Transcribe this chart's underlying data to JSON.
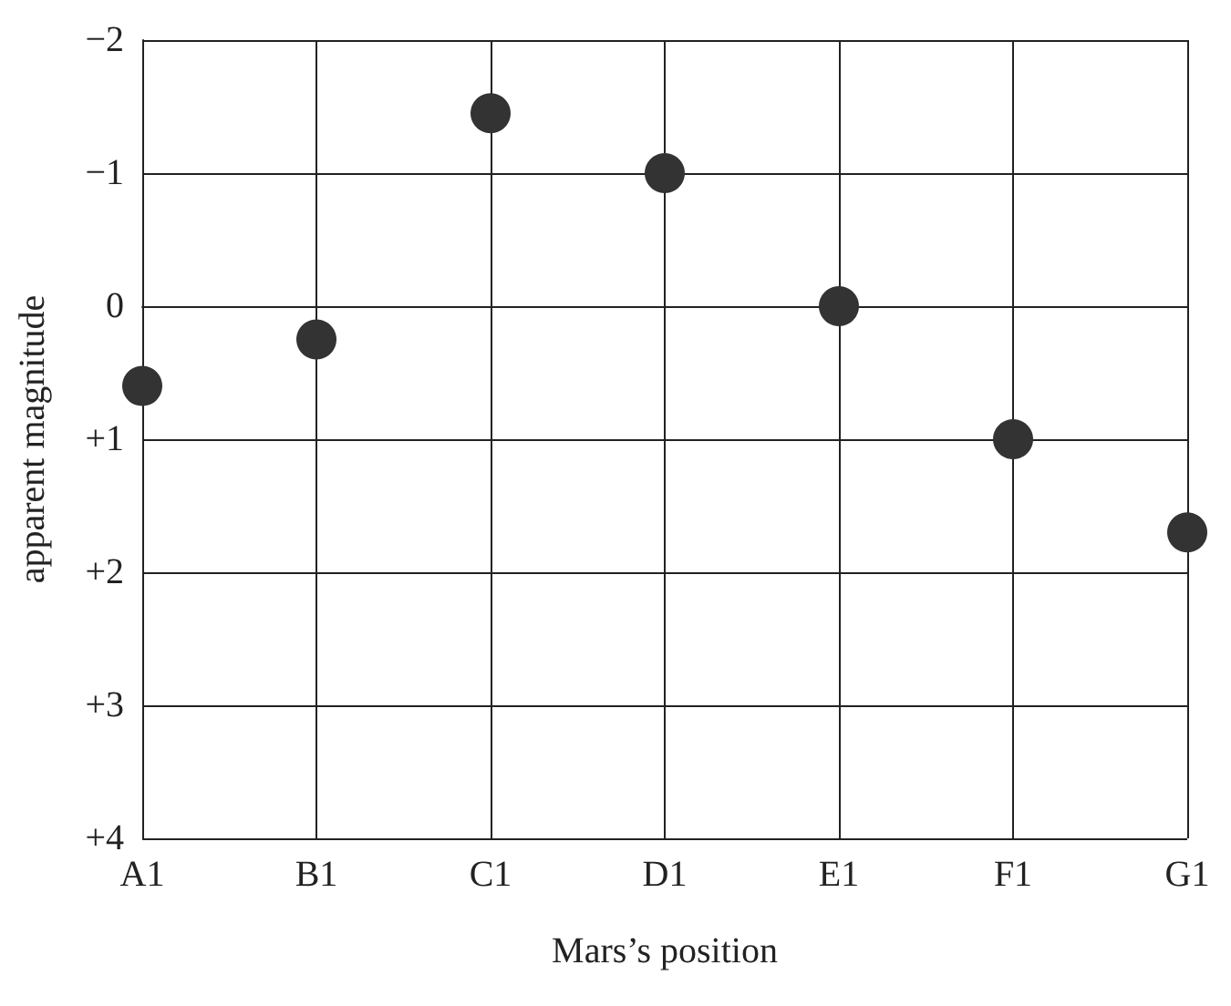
{
  "chart_data": {
    "type": "scatter",
    "xlabel": "Mars’s position",
    "ylabel": "apparent magnitude",
    "categories": [
      "A1",
      "B1",
      "C1",
      "D1",
      "E1",
      "F1",
      "G1"
    ],
    "series": [
      {
        "color": "#333333",
        "values": [
          0.6,
          0.25,
          -1.45,
          -1.0,
          0.0,
          1.0,
          1.7
        ]
      }
    ],
    "ylim": [
      4,
      -2
    ],
    "yticks": [
      {
        "value": -2,
        "label": "−2"
      },
      {
        "value": -1,
        "label": "−1"
      },
      0,
      {
        "value": 1,
        "label": "+1"
      },
      {
        "value": 2,
        "label": "+2"
      },
      {
        "value": 3,
        "label": "+3"
      },
      {
        "value": 4,
        "label": "+4"
      }
    ],
    "grid": true,
    "marker": "circle"
  }
}
